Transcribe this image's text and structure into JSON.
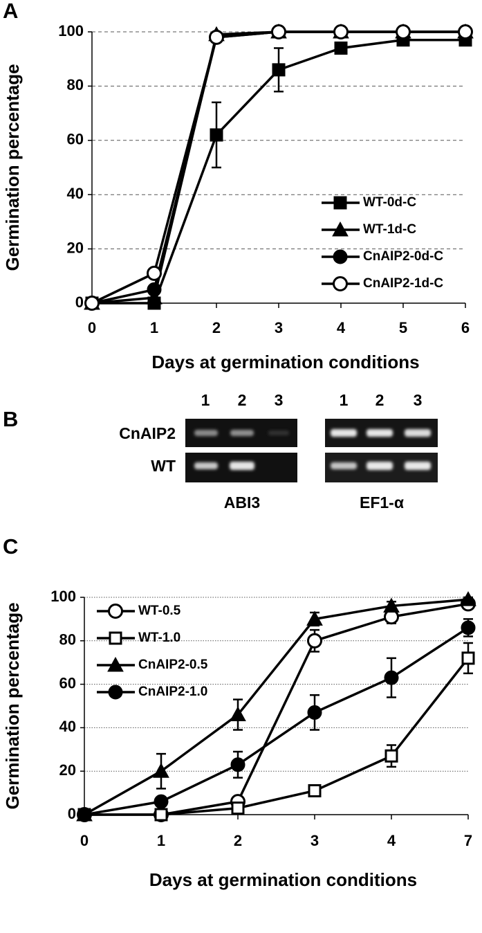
{
  "chart_data": [
    {
      "type": "line",
      "panel": "A",
      "x_label": "Days at germination conditions",
      "y_label": "Germination percentage",
      "x": [
        0,
        1,
        2,
        3,
        4,
        5,
        6
      ],
      "xlim": [
        0,
        6
      ],
      "xticks": [
        0,
        1,
        2,
        3,
        4,
        5,
        6
      ],
      "ylim": [
        0,
        100
      ],
      "yticks": [
        0,
        20,
        40,
        60,
        80,
        100
      ],
      "grid": "dashed",
      "legend": "lower right",
      "series": [
        {
          "name": "WT-0d-C",
          "color": "#000000",
          "marker": "square-filled",
          "values": [
            0,
            0,
            62,
            86,
            94,
            97,
            97
          ],
          "errors": [
            0,
            0,
            12,
            8,
            2,
            1,
            1
          ]
        },
        {
          "name": "WT-1d-C",
          "color": "#000000",
          "marker": "triangle-filled",
          "values": [
            0,
            2,
            99,
            100,
            100,
            100,
            100
          ]
        },
        {
          "name": "CnAIP2-0d-C",
          "color": "#000000",
          "marker": "circle-filled",
          "values": [
            0,
            5,
            98,
            100,
            100,
            100,
            100
          ]
        },
        {
          "name": "CnAIP2-1d-C",
          "color": "#000000",
          "marker": "circle-open",
          "values": [
            0,
            11,
            98,
            100,
            100,
            100,
            100
          ]
        }
      ]
    },
    {
      "type": "line",
      "panel": "C",
      "x_label": "Days at germination conditions",
      "y_label": "Germination percentage",
      "categories": [
        "0",
        "1",
        "2",
        "3",
        "4",
        "7"
      ],
      "ylim": [
        0,
        100
      ],
      "yticks": [
        0,
        20,
        40,
        60,
        80,
        100
      ],
      "grid": "dotted",
      "legend": "upper left",
      "series": [
        {
          "name": "WT-0.5",
          "color": "#000000",
          "marker": "circle-open",
          "values": [
            0,
            0,
            6,
            80,
            91,
            97
          ],
          "errors": [
            0,
            0,
            1,
            5,
            3,
            2
          ]
        },
        {
          "name": "WT-1.0",
          "color": "#000000",
          "marker": "square-open",
          "values": [
            0,
            0,
            3,
            11,
            27,
            72
          ],
          "errors": [
            0,
            0,
            1,
            1,
            5,
            7
          ]
        },
        {
          "name": "CnAIP2-0.5",
          "color": "#000000",
          "marker": "triangle-filled",
          "values": [
            0,
            20,
            46,
            90,
            96,
            99
          ],
          "errors": [
            0,
            8,
            7,
            3,
            2,
            1
          ]
        },
        {
          "name": "CnAIP2-1.0",
          "color": "#000000",
          "marker": "circle-filled",
          "values": [
            0,
            6,
            23,
            47,
            63,
            86
          ],
          "errors": [
            0,
            2,
            6,
            8,
            9,
            4
          ]
        }
      ]
    }
  ],
  "gel": {
    "panel": "B",
    "lanes": [
      "1",
      "2",
      "3"
    ],
    "row_labels": [
      "CnAIP2",
      "WT"
    ],
    "genes": [
      "ABI3",
      "EF1-α"
    ]
  }
}
